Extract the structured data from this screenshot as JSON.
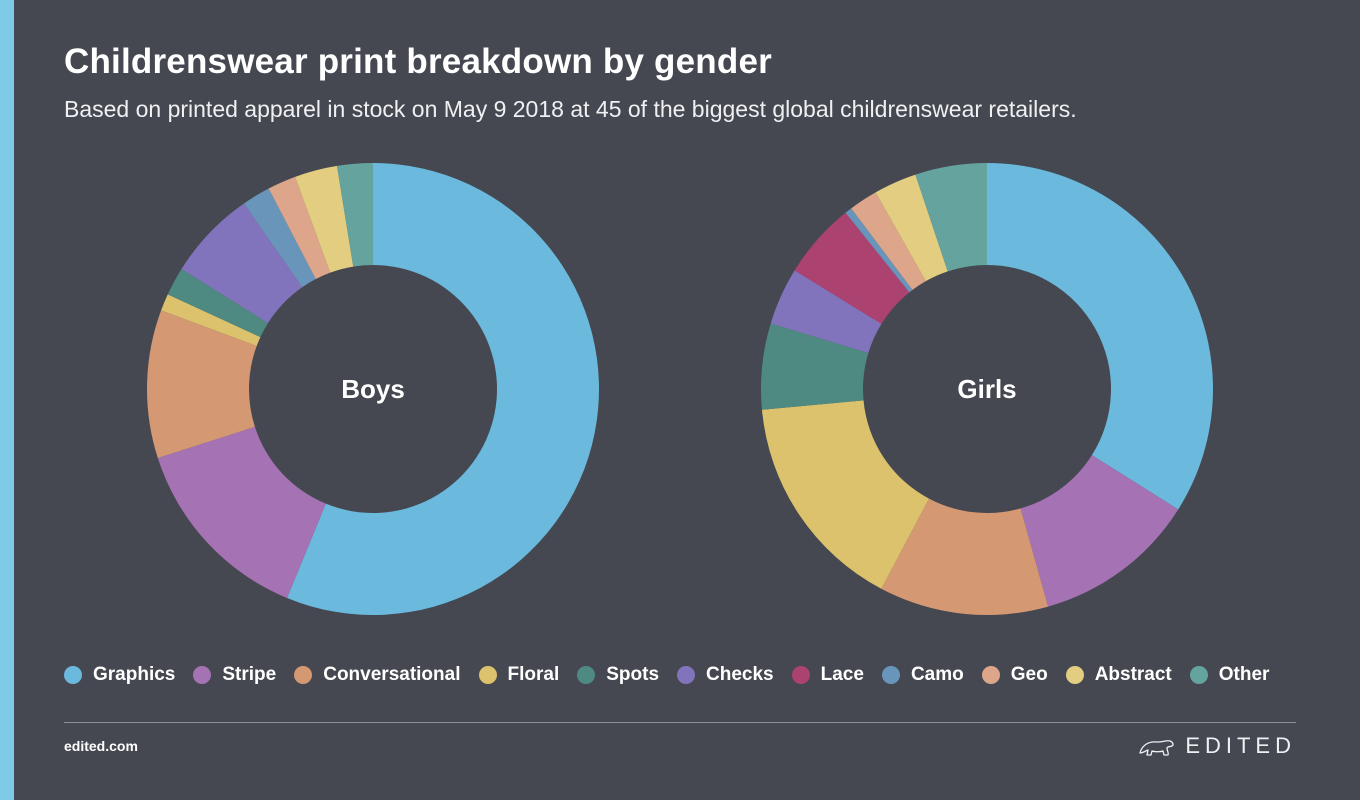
{
  "header": {
    "title": "Childrenswear print breakdown by gender",
    "subtitle": "Based on printed apparel in stock on May 9 2018 at 45 of the biggest global childrenswear retailers."
  },
  "legend": [
    {
      "label": "Graphics",
      "color": "#6bb9dc"
    },
    {
      "label": "Stripe",
      "color": "#a572b4"
    },
    {
      "label": "Conversational",
      "color": "#d49873"
    },
    {
      "label": "Floral",
      "color": "#dcc26c"
    },
    {
      "label": "Spots",
      "color": "#4f8a82"
    },
    {
      "label": "Checks",
      "color": "#8174bc"
    },
    {
      "label": "Lace",
      "color": "#ac4270"
    },
    {
      "label": "Camo",
      "color": "#6a95ba"
    },
    {
      "label": "Geo",
      "color": "#dda68a"
    },
    {
      "label": "Abstract",
      "color": "#e2cd80"
    },
    {
      "label": "Other",
      "color": "#64a39e"
    }
  ],
  "chart_data": [
    {
      "type": "pie",
      "donut": true,
      "center_label": "Boys",
      "labels": [
        "Graphics",
        "Stripe",
        "Conversational",
        "Floral",
        "Spots",
        "Checks",
        "Lace",
        "Camo",
        "Geo",
        "Abstract",
        "Other"
      ],
      "values": [
        55.2,
        13.6,
        10.4,
        1.2,
        2.0,
        6.3,
        0,
        2.0,
        2.0,
        3.0,
        2.5
      ]
    },
    {
      "type": "pie",
      "donut": true,
      "center_label": "Girls",
      "labels": [
        "Graphics",
        "Stripe",
        "Conversational",
        "Floral",
        "Spots",
        "Checks",
        "Lace",
        "Camo",
        "Geo",
        "Abstract",
        "Other"
      ],
      "values": [
        33.1,
        11.4,
        11.8,
        15.4,
        6.0,
        4.0,
        5.3,
        0.5,
        2.0,
        3.0,
        5.0
      ]
    }
  ],
  "footer": {
    "url": "edited.com",
    "brand": "EDITED"
  }
}
